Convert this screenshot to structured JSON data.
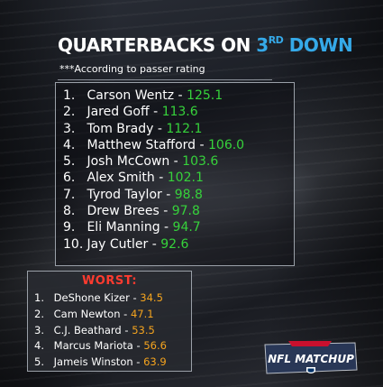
{
  "header": {
    "title_main": "QUARTERBACKS ON ",
    "title_accent_num": "3",
    "title_accent_sup": "RD",
    "title_accent_word": " DOWN",
    "subtitle": "***According to passer rating"
  },
  "top_list": {
    "items": [
      {
        "rank": "1.",
        "name": "Carson Wentz - ",
        "rating": "125.1"
      },
      {
        "rank": "2.",
        "name": "Jared Goff - ",
        "rating": "113.6"
      },
      {
        "rank": "3.",
        "name": "Tom Brady - ",
        "rating": "112.1"
      },
      {
        "rank": "4.",
        "name": "Matthew Stafford - ",
        "rating": "106.0"
      },
      {
        "rank": "5.",
        "name": "Josh McCown - ",
        "rating": "103.6"
      },
      {
        "rank": "6.",
        "name": "Alex Smith - ",
        "rating": "102.1"
      },
      {
        "rank": "7.",
        "name": "Tyrod Taylor - ",
        "rating": "98.8"
      },
      {
        "rank": "8.",
        "name": "Drew Brees - ",
        "rating": "97.8"
      },
      {
        "rank": "9.",
        "name": "Eli Manning - ",
        "rating": "94.7"
      },
      {
        "rank": "10.",
        "name": "Jay Cutler - ",
        "rating": "92.6"
      }
    ]
  },
  "worst": {
    "title": "WORST:",
    "items": [
      {
        "rank": "1.",
        "name": "DeShone Kizer - ",
        "rating": "34.5"
      },
      {
        "rank": "2.",
        "name": "Cam Newton - ",
        "rating": "47.1"
      },
      {
        "rank": "3.",
        "name": "C.J. Beathard - ",
        "rating": "53.5"
      },
      {
        "rank": "4.",
        "name": "Marcus Mariota - ",
        "rating": "56.6"
      },
      {
        "rank": "5.",
        "name": "Jameis Winston - ",
        "rating": "63.9"
      }
    ]
  },
  "logo": {
    "text": "NFL MATCHUP",
    "icon": "nfl-shield-icon"
  },
  "colors": {
    "accent_blue": "#35a9e8",
    "good_green": "#36d23b",
    "bad_orange": "#f5a41e",
    "worst_red": "#ff3b2f"
  }
}
